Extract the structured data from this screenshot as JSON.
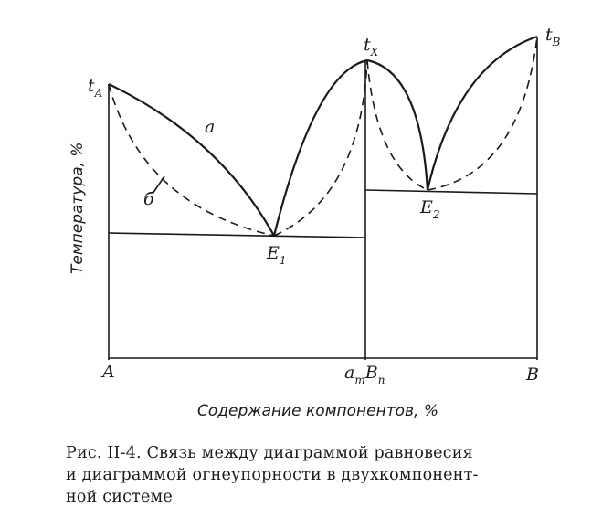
{
  "points": {
    "tA": "t",
    "tA_sub": "A",
    "tX": "t",
    "tX_sub": "X",
    "tB": "t",
    "tB_sub": "B",
    "E1": "E",
    "E1_sub": "1",
    "E2": "E",
    "E2_sub": "2"
  },
  "curve_labels": {
    "a": "a",
    "b": "б"
  },
  "axis": {
    "y_title": "Температура, %",
    "x_title": "Содержание компонентов, %",
    "tick_A": "A",
    "tick_AmBn": "a",
    "tick_AmBn_sub1": "m",
    "tick_AmBn_mid": "B",
    "tick_AmBn_sub2": "n",
    "tick_B": "B"
  },
  "caption": {
    "line1": "Рис. II-4. Связь между диаграммой равновесия",
    "line2": "и диаграммой огнеупорности в двухкомпонент-",
    "line3": "ной системе"
  }
}
